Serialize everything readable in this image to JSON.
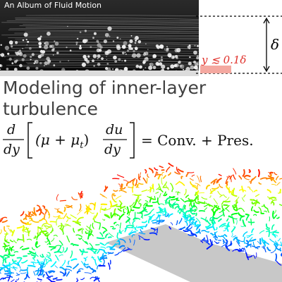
{
  "photo": {
    "caption": "An Album of Fluid Motion",
    "icon": "boundary-layer-photo"
  },
  "annotation": {
    "delta_label": "δ",
    "inner_layer_label": "y ≲ 0.1δ",
    "inner_color": "#e0302a",
    "inner_band_color": "#f4a8a0"
  },
  "title": {
    "line1": "Modeling of inner-layer",
    "line2": "turbulence"
  },
  "equation": {
    "d_num": "d",
    "d_den": "dy",
    "mu_term": "(μ + μ",
    "mu_sub": "t",
    "mu_close": ")",
    "du_num": "du",
    "du_den": "dy",
    "rhs": "= Conv. + Pres."
  },
  "simulation": {
    "icon": "turbulent-flow-over-bump-render",
    "surface_color": "#c8c8c8"
  }
}
